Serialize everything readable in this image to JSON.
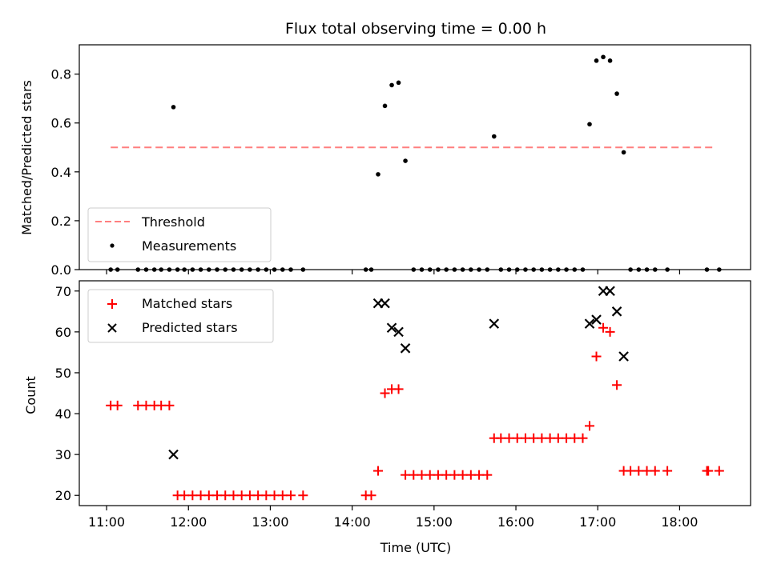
{
  "chart_data": [
    {
      "type": "scatter",
      "title": "Flux total observing time = 0.00 h",
      "ylabel": "Matched/Predicted stars",
      "xlim": [
        "10:40",
        "18:52"
      ],
      "ylim": [
        0,
        0.92
      ],
      "yticks": [
        "0.0",
        "0.2",
        "0.4",
        "0.6",
        "0.8"
      ],
      "legend_position": "lower left",
      "threshold": {
        "name": "Threshold",
        "y": 0.5,
        "x_range": [
          "11:03",
          "18:24"
        ],
        "color": "#ff7f7f"
      },
      "series": [
        {
          "name": "Measurements",
          "color": "#000000",
          "points": [
            [
              "11:03",
              0
            ],
            [
              "11:08",
              0
            ],
            [
              "11:23",
              0
            ],
            [
              "11:29",
              0
            ],
            [
              "11:35",
              0
            ],
            [
              "11:40",
              0
            ],
            [
              "11:46",
              0
            ],
            [
              "11:49",
              0.665
            ],
            [
              "11:52",
              0
            ],
            [
              "11:57",
              0
            ],
            [
              "12:03",
              0
            ],
            [
              "12:09",
              0
            ],
            [
              "12:15",
              0
            ],
            [
              "12:21",
              0
            ],
            [
              "12:27",
              0
            ],
            [
              "12:33",
              0
            ],
            [
              "12:39",
              0
            ],
            [
              "12:45",
              0
            ],
            [
              "12:51",
              0
            ],
            [
              "12:57",
              0
            ],
            [
              "13:03",
              0
            ],
            [
              "13:09",
              0
            ],
            [
              "13:15",
              0
            ],
            [
              "13:24",
              0
            ],
            [
              "14:10",
              0
            ],
            [
              "14:14",
              0
            ],
            [
              "14:19",
              0.39
            ],
            [
              "14:24",
              0.67
            ],
            [
              "14:29",
              0.755
            ],
            [
              "14:34",
              0.765
            ],
            [
              "14:39",
              0.445
            ],
            [
              "14:45",
              0
            ],
            [
              "14:51",
              0
            ],
            [
              "14:57",
              0
            ],
            [
              "15:03",
              0
            ],
            [
              "15:09",
              0
            ],
            [
              "15:15",
              0
            ],
            [
              "15:21",
              0
            ],
            [
              "15:27",
              0
            ],
            [
              "15:33",
              0
            ],
            [
              "15:39",
              0
            ],
            [
              "15:44",
              0.545
            ],
            [
              "15:49",
              0
            ],
            [
              "15:55",
              0
            ],
            [
              "16:01",
              0
            ],
            [
              "16:07",
              0
            ],
            [
              "16:13",
              0
            ],
            [
              "16:19",
              0
            ],
            [
              "16:25",
              0
            ],
            [
              "16:31",
              0
            ],
            [
              "16:37",
              0
            ],
            [
              "16:43",
              0
            ],
            [
              "16:49",
              0
            ],
            [
              "16:54",
              0.595
            ],
            [
              "16:59",
              0.855
            ],
            [
              "17:04",
              0.87
            ],
            [
              "17:09",
              0.855
            ],
            [
              "17:14",
              0.72
            ],
            [
              "17:19",
              0.48
            ],
            [
              "17:24",
              0
            ],
            [
              "17:30",
              0
            ],
            [
              "17:36",
              0
            ],
            [
              "17:42",
              0
            ],
            [
              "17:51",
              0
            ],
            [
              "18:20",
              0
            ],
            [
              "18:29",
              0
            ]
          ]
        }
      ]
    },
    {
      "type": "scatter",
      "xlabel": "Time (UTC)",
      "ylabel": "Count",
      "xlim": [
        "10:40",
        "18:52"
      ],
      "ylim": [
        17.5,
        72.5
      ],
      "xticks": [
        "11:00",
        "12:00",
        "13:00",
        "14:00",
        "15:00",
        "16:00",
        "17:00",
        "18:00"
      ],
      "yticks": [
        "20",
        "30",
        "40",
        "50",
        "60",
        "70"
      ],
      "legend_position": "upper left",
      "series": [
        {
          "name": "Matched stars",
          "marker": "plus",
          "color": "#ff0000",
          "points": [
            [
              "11:03",
              42
            ],
            [
              "11:08",
              42
            ],
            [
              "11:23",
              42
            ],
            [
              "11:29",
              42
            ],
            [
              "11:35",
              42
            ],
            [
              "11:40",
              42
            ],
            [
              "11:46",
              42
            ],
            [
              "11:52",
              20
            ],
            [
              "11:57",
              20
            ],
            [
              "12:03",
              20
            ],
            [
              "12:09",
              20
            ],
            [
              "12:15",
              20
            ],
            [
              "12:21",
              20
            ],
            [
              "12:27",
              20
            ],
            [
              "12:33",
              20
            ],
            [
              "12:39",
              20
            ],
            [
              "12:45",
              20
            ],
            [
              "12:51",
              20
            ],
            [
              "12:57",
              20
            ],
            [
              "13:03",
              20
            ],
            [
              "13:09",
              20
            ],
            [
              "13:15",
              20
            ],
            [
              "13:24",
              20
            ],
            [
              "14:10",
              20
            ],
            [
              "14:14",
              20
            ],
            [
              "14:19",
              26
            ],
            [
              "14:24",
              45
            ],
            [
              "14:29",
              46
            ],
            [
              "14:34",
              46
            ],
            [
              "14:39",
              25
            ],
            [
              "14:45",
              25
            ],
            [
              "14:51",
              25
            ],
            [
              "14:57",
              25
            ],
            [
              "15:03",
              25
            ],
            [
              "15:09",
              25
            ],
            [
              "15:15",
              25
            ],
            [
              "15:21",
              25
            ],
            [
              "15:27",
              25
            ],
            [
              "15:33",
              25
            ],
            [
              "15:39",
              25
            ],
            [
              "15:44",
              34
            ],
            [
              "15:49",
              34
            ],
            [
              "15:55",
              34
            ],
            [
              "16:01",
              34
            ],
            [
              "16:07",
              34
            ],
            [
              "16:13",
              34
            ],
            [
              "16:19",
              34
            ],
            [
              "16:25",
              34
            ],
            [
              "16:31",
              34
            ],
            [
              "16:37",
              34
            ],
            [
              "16:43",
              34
            ],
            [
              "16:49",
              34
            ],
            [
              "16:54",
              37
            ],
            [
              "16:59",
              54
            ],
            [
              "17:04",
              61
            ],
            [
              "17:09",
              60
            ],
            [
              "17:14",
              47
            ],
            [
              "17:19",
              26
            ],
            [
              "17:24",
              26
            ],
            [
              "17:30",
              26
            ],
            [
              "17:36",
              26
            ],
            [
              "17:42",
              26
            ],
            [
              "17:51",
              26
            ],
            [
              "18:20",
              26
            ],
            [
              "18:21",
              26
            ],
            [
              "18:29",
              26
            ]
          ]
        },
        {
          "name": "Predicted stars",
          "marker": "x",
          "color": "#000000",
          "points": [
            [
              "11:49",
              30
            ],
            [
              "14:19",
              67
            ],
            [
              "14:24",
              67
            ],
            [
              "14:29",
              61
            ],
            [
              "14:34",
              60
            ],
            [
              "14:39",
              56
            ],
            [
              "15:44",
              62
            ],
            [
              "16:54",
              62
            ],
            [
              "16:59",
              63
            ],
            [
              "17:04",
              70
            ],
            [
              "17:09",
              70
            ],
            [
              "17:14",
              65
            ],
            [
              "17:19",
              54
            ]
          ]
        }
      ]
    }
  ]
}
